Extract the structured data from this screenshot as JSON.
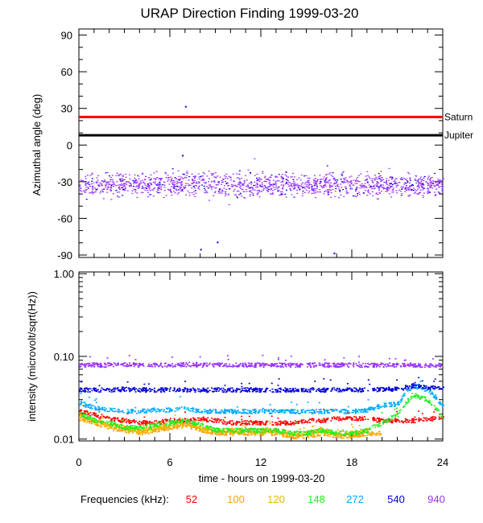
{
  "chart_data": [
    {
      "type": "scatter",
      "title": "URAP Direction Finding  1999-03-20",
      "ylabel": "Azimuthal angle (deg)",
      "xlabel": "",
      "xlim": [
        0,
        24
      ],
      "ylim": [
        -92,
        95
      ],
      "yticks": [
        90,
        60,
        30,
        0,
        -30,
        -60,
        -90
      ],
      "reference_lines": [
        {
          "name": "Saturn",
          "value": 23,
          "color": "#ff0000"
        },
        {
          "name": "Jupiter",
          "value": 8,
          "color": "#000000"
        }
      ],
      "scatter_band": {
        "center": -32,
        "spread": 7,
        "color_main": "#9933ff",
        "color_secondary": "#0000dd"
      },
      "outliers": [
        {
          "x": 7.0,
          "y": 32
        },
        {
          "x": 6.8,
          "y": -8
        },
        {
          "x": 8.0,
          "y": -85
        },
        {
          "x": 9.1,
          "y": -79
        },
        {
          "x": 16.8,
          "y": -88
        }
      ]
    },
    {
      "type": "line",
      "ylabel": "intensity (microvolt/sqrt(Hz))",
      "xlabel": "time - hours on 1999-03-20",
      "yscale": "log",
      "xlim": [
        0,
        24
      ],
      "ylim": [
        0.0095,
        1.05
      ],
      "yticks": [
        "1.00",
        "0.10",
        "0.01"
      ],
      "xticks": [
        "0",
        "6",
        "12",
        "18",
        "24"
      ],
      "legend_label": "Frequencies (kHz):",
      "series": [
        {
          "name": "52",
          "color": "#ff0000",
          "x": [
            0,
            1,
            2,
            3,
            4,
            5,
            6,
            7,
            8,
            9,
            10,
            11,
            12,
            13,
            14,
            15,
            16,
            17,
            18,
            19,
            20,
            21,
            22,
            23,
            24
          ],
          "values": [
            0.022,
            0.02,
            0.018,
            0.017,
            0.016,
            0.016,
            0.017,
            0.017,
            0.018,
            0.017,
            0.016,
            0.016,
            0.016,
            0.016,
            0.016,
            0.017,
            0.017,
            0.018,
            0.018,
            0.018,
            0.017,
            0.017,
            0.017,
            0.018,
            0.018
          ]
        },
        {
          "name": "100",
          "color": "#ffa500",
          "x": [
            0,
            1,
            2,
            3,
            4,
            5,
            6,
            7,
            8,
            9,
            10,
            11,
            12,
            13,
            14,
            15,
            16,
            17,
            18,
            19,
            20
          ],
          "values": [
            0.018,
            0.016,
            0.014,
            0.013,
            0.012,
            0.013,
            0.014,
            0.015,
            0.013,
            0.012,
            0.012,
            0.012,
            0.012,
            0.012,
            0.011,
            0.011,
            0.012,
            0.011,
            0.011,
            0.012,
            0.012
          ]
        },
        {
          "name": "120",
          "color": "#e8b800",
          "x": [
            0,
            1,
            2,
            3,
            4,
            5,
            6,
            7,
            8,
            9,
            10,
            11,
            12,
            13,
            14,
            15,
            16,
            17,
            18,
            19
          ],
          "values": [
            0.02,
            0.017,
            0.015,
            0.014,
            0.013,
            0.014,
            0.015,
            0.016,
            0.014,
            0.013,
            0.013,
            0.013,
            0.013,
            0.013,
            0.012,
            0.012,
            0.013,
            0.012,
            0.012,
            0.013
          ]
        },
        {
          "name": "148",
          "color": "#22ee22",
          "x": [
            0,
            1,
            2,
            3,
            4,
            5,
            6,
            7,
            8,
            9,
            10,
            11,
            12,
            13,
            14,
            15,
            16,
            17,
            18,
            19,
            20,
            21,
            22,
            23,
            24
          ],
          "values": [
            0.021,
            0.017,
            0.016,
            0.014,
            0.014,
            0.015,
            0.016,
            0.017,
            0.015,
            0.013,
            0.013,
            0.013,
            0.013,
            0.013,
            0.012,
            0.012,
            0.013,
            0.012,
            0.012,
            0.013,
            0.016,
            0.02,
            0.035,
            0.03,
            0.018
          ]
        },
        {
          "name": "272",
          "color": "#00aaff",
          "x": [
            0,
            1,
            2,
            3,
            4,
            5,
            6,
            7,
            8,
            9,
            10,
            11,
            12,
            13,
            14,
            15,
            16,
            17,
            18,
            19,
            20,
            21,
            22,
            23,
            24
          ],
          "values": [
            0.028,
            0.024,
            0.023,
            0.022,
            0.022,
            0.023,
            0.023,
            0.024,
            0.022,
            0.022,
            0.022,
            0.022,
            0.022,
            0.022,
            0.022,
            0.022,
            0.022,
            0.022,
            0.022,
            0.023,
            0.026,
            0.027,
            0.045,
            0.04,
            0.025
          ]
        },
        {
          "name": "540",
          "color": "#0000dd",
          "x": [
            0,
            1,
            2,
            3,
            4,
            5,
            6,
            7,
            8,
            9,
            10,
            11,
            12,
            13,
            14,
            15,
            16,
            17,
            18,
            19,
            20,
            21,
            22,
            23,
            24
          ],
          "values": [
            0.04,
            0.04,
            0.04,
            0.041,
            0.04,
            0.04,
            0.04,
            0.04,
            0.04,
            0.04,
            0.04,
            0.04,
            0.04,
            0.04,
            0.04,
            0.04,
            0.04,
            0.04,
            0.04,
            0.04,
            0.041,
            0.041,
            0.045,
            0.043,
            0.041
          ]
        },
        {
          "name": "940",
          "color": "#9933ff",
          "x": [
            0,
            1,
            2,
            3,
            4,
            5,
            6,
            7,
            8,
            9,
            10,
            11,
            12,
            13,
            14,
            15,
            16,
            17,
            18,
            19,
            20,
            21,
            22,
            23,
            24
          ],
          "values": [
            0.08,
            0.08,
            0.08,
            0.081,
            0.08,
            0.08,
            0.08,
            0.081,
            0.08,
            0.08,
            0.08,
            0.08,
            0.08,
            0.08,
            0.08,
            0.08,
            0.08,
            0.08,
            0.08,
            0.08,
            0.08,
            0.08,
            0.08,
            0.08,
            0.08
          ]
        }
      ]
    }
  ]
}
